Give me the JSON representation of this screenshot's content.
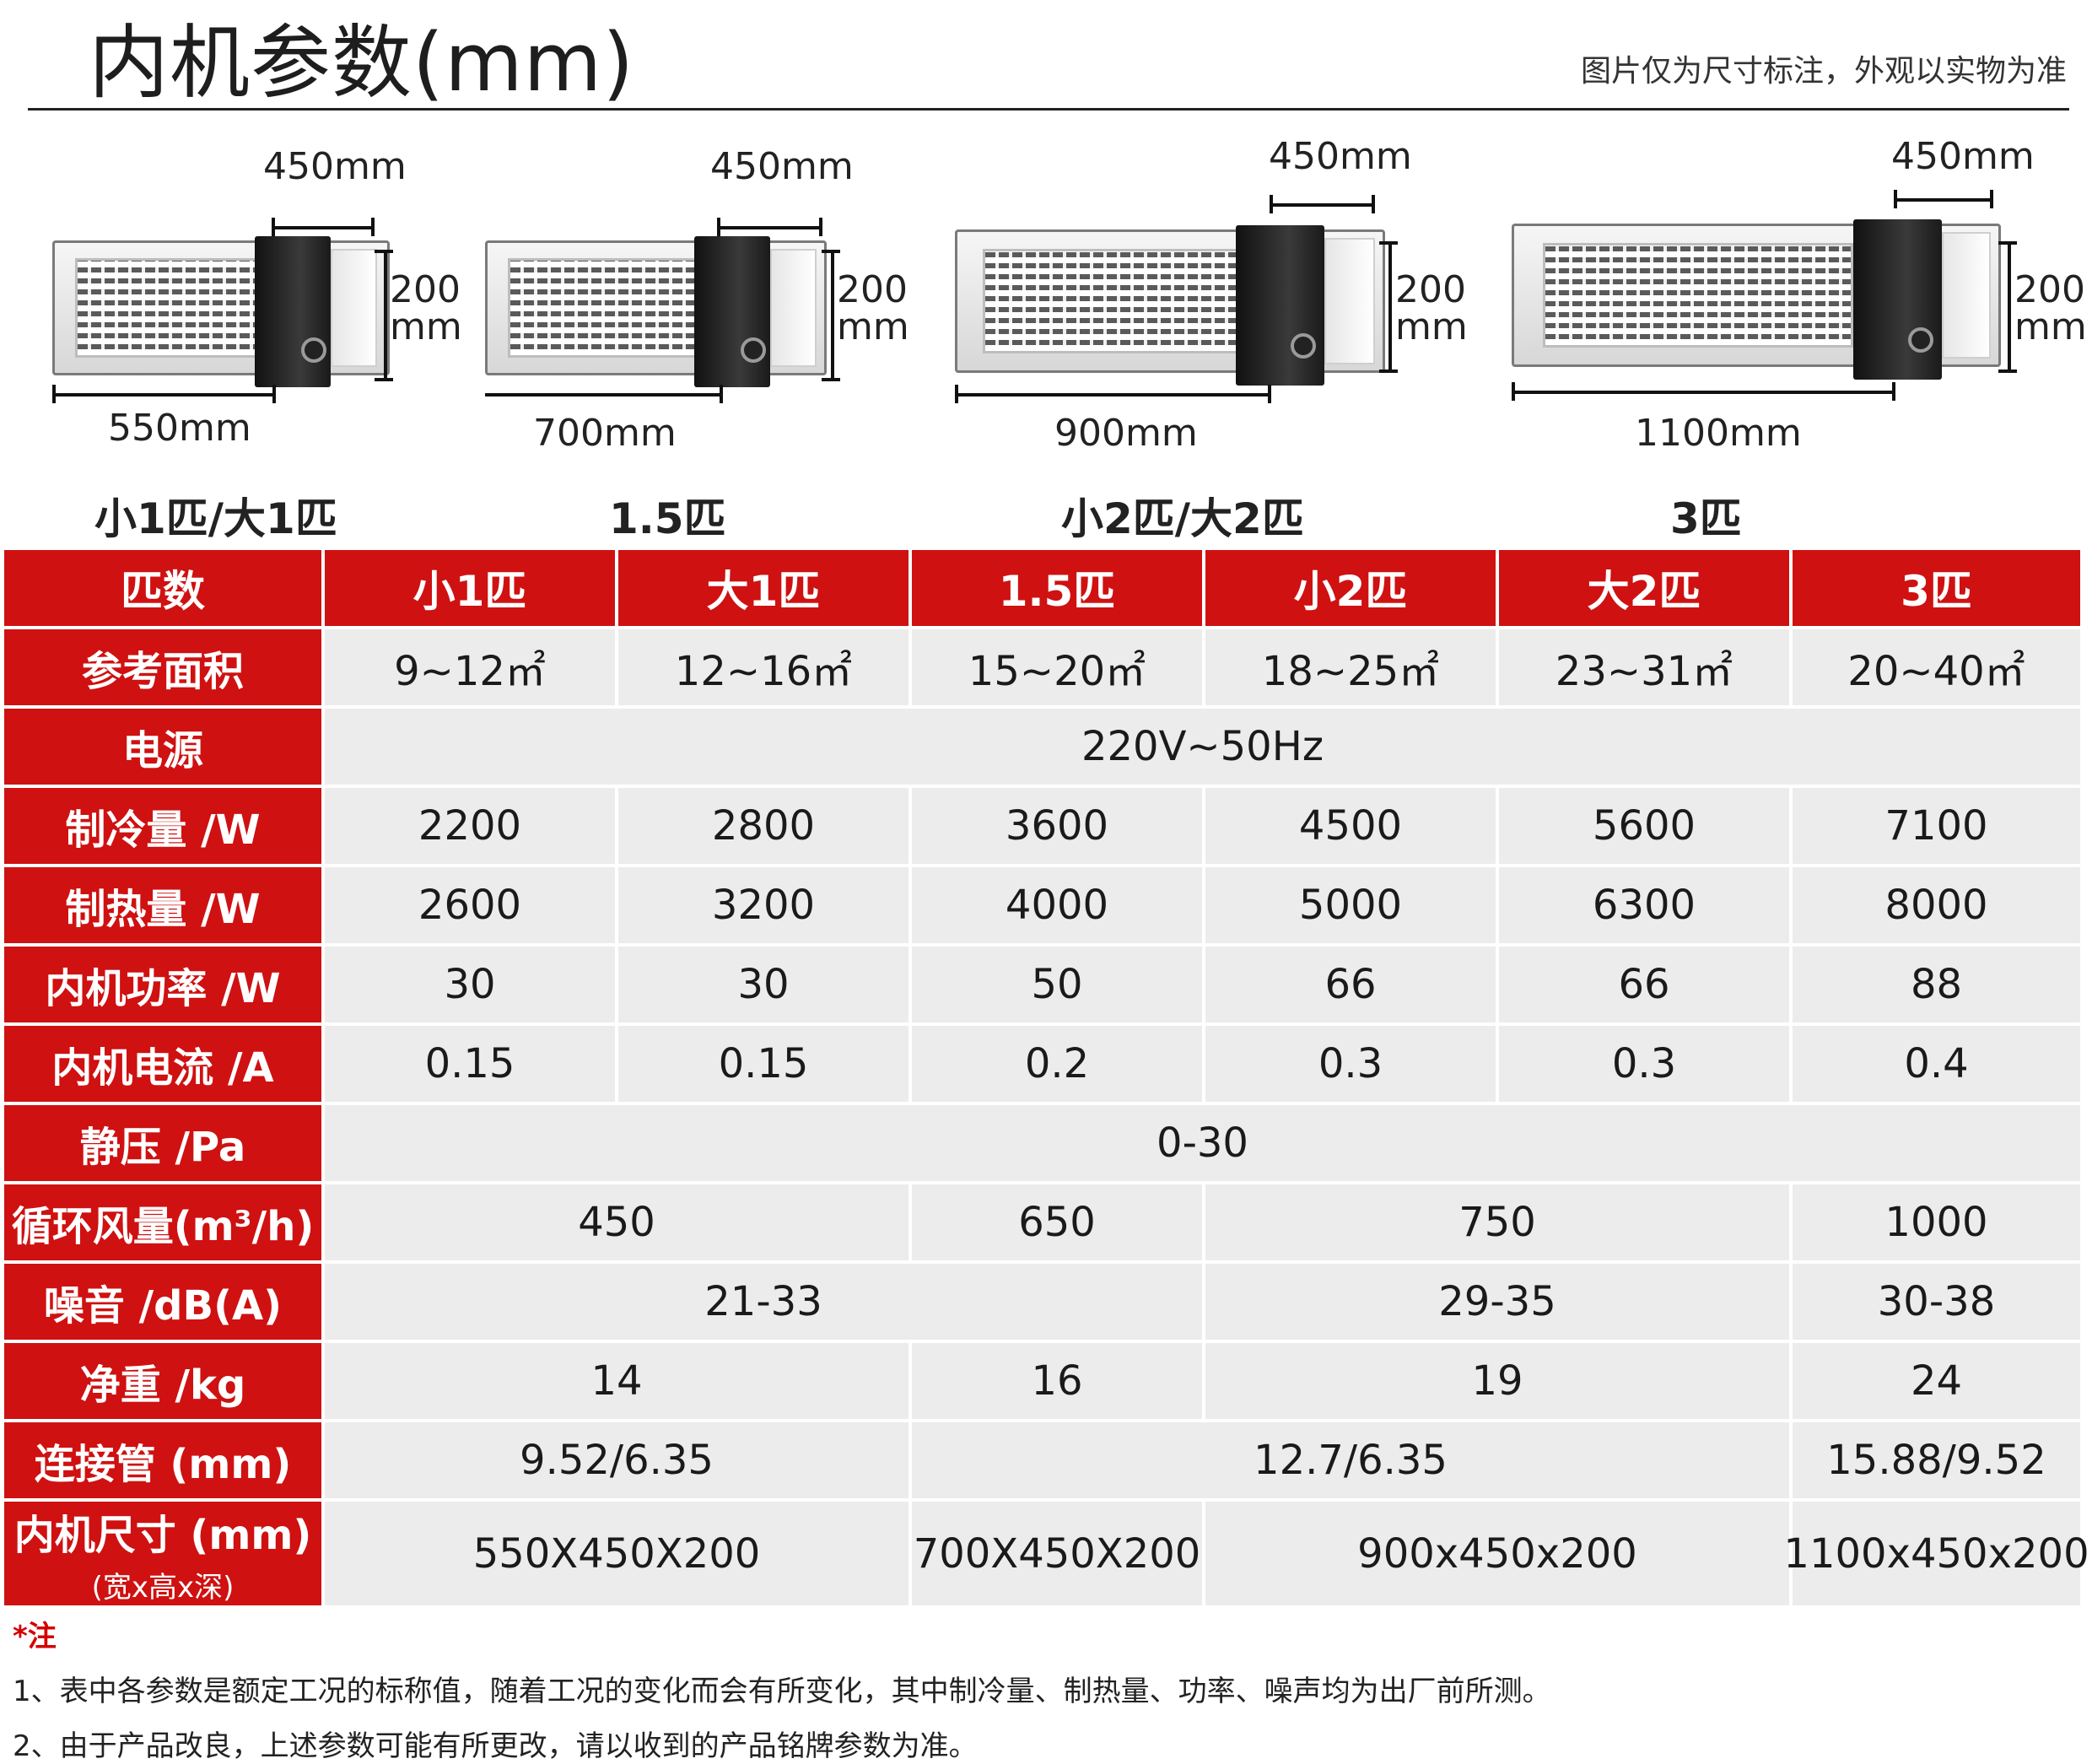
{
  "header": {
    "title": "内机参数(mm)",
    "note": "图片仅为尺寸标注，外观以实物为准"
  },
  "products": [
    {
      "depth": "450mm",
      "height_l1": "200",
      "height_l2": "mm",
      "width": "550mm",
      "model": "小1匹/大1匹"
    },
    {
      "depth": "450mm",
      "height_l1": "200",
      "height_l2": "mm",
      "width": "700mm",
      "model": "1.5匹"
    },
    {
      "depth": "450mm",
      "height_l1": "200",
      "height_l2": "mm",
      "width": "900mm",
      "model": "小2匹/大2匹"
    },
    {
      "depth": "450mm",
      "height_l1": "200",
      "height_l2": "mm",
      "width": "1100mm",
      "model": "3匹"
    }
  ],
  "table": {
    "header": [
      "匹数",
      "小1匹",
      "大1匹",
      "1.5匹",
      "小2匹",
      "大2匹",
      "3匹"
    ],
    "area": {
      "label": "参考面积",
      "values": [
        "9~12㎡",
        "12~16㎡",
        "15~20㎡",
        "18~25㎡",
        "23~31㎡",
        "20~40㎡"
      ]
    },
    "power_supply": {
      "label": "电源",
      "value": "220V~50Hz"
    },
    "cooling": {
      "label": "制冷量 /W",
      "values": [
        "2200",
        "2800",
        "3600",
        "4500",
        "5600",
        "7100"
      ]
    },
    "heating": {
      "label": "制热量 /W",
      "values": [
        "2600",
        "3200",
        "4000",
        "5000",
        "6300",
        "8000"
      ]
    },
    "power": {
      "label": "内机功率 /W",
      "values": [
        "30",
        "30",
        "50",
        "66",
        "66",
        "88"
      ]
    },
    "current": {
      "label": "内机电流 /A",
      "values": [
        "0.15",
        "0.15",
        "0.2",
        "0.3",
        "0.3",
        "0.4"
      ]
    },
    "static_pressure": {
      "label": "静压 /Pa",
      "value": "0-30"
    },
    "airflow": {
      "label": "循环风量(m³/h)",
      "values": [
        "450",
        "650",
        "750",
        "1000"
      ]
    },
    "noise": {
      "label": "噪音 /dB(A)",
      "values": [
        "21-33",
        "29-35",
        "30-38"
      ]
    },
    "weight": {
      "label": "净重 /kg",
      "values": [
        "14",
        "16",
        "19",
        "24"
      ]
    },
    "pipe": {
      "label": "连接管 (mm)",
      "values": [
        "9.52/6.35",
        "12.7/6.35",
        "15.88/9.52"
      ]
    },
    "size": {
      "label": "内机尺寸 (mm)",
      "sublabel": "(宽x高x深)",
      "values": [
        "550X450X200",
        "700X450X200",
        "900x450x200",
        "1100x450x200"
      ]
    }
  },
  "notes": {
    "mark": "*注",
    "lines": [
      "1、表中各参数是额定工况的标称值，随着工况的变化而会有所变化，其中制冷量、制热量、功率、噪声均为出厂前所测。",
      "2、由于产品改良，上述参数可能有所更改，请以收到的产品铭牌参数为准。"
    ]
  }
}
